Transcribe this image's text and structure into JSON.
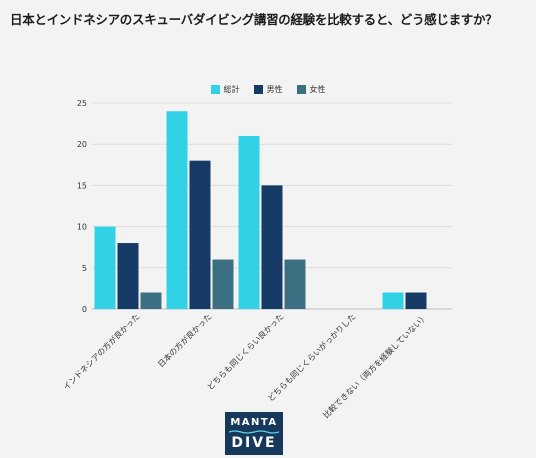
{
  "title": "日本とインドネシアのスキューバダイビング講習の経験を比較すると、どう感じますか？",
  "logo": {
    "line1": "MANTA",
    "line2": "DIVE"
  },
  "chart_data": {
    "type": "bar",
    "categories": [
      "インドネシアの方が良かった",
      "日本の方が良かった",
      "どちらも同じくらい良かった",
      "どちらも同じくらいがっかりした",
      "比較できない（両方を経験していない）"
    ],
    "series": [
      {
        "name": "総計",
        "color": "#31d1e6",
        "values": [
          10,
          24,
          21,
          0,
          2
        ]
      },
      {
        "name": "男性",
        "color": "#153a66",
        "values": [
          8,
          18,
          15,
          0,
          2
        ]
      },
      {
        "name": "女性",
        "color": "#3d6f82",
        "values": [
          2,
          6,
          6,
          0,
          0
        ]
      }
    ],
    "yticks": [
      0,
      5,
      10,
      15,
      20,
      25
    ],
    "ylim": [
      0,
      25
    ],
    "grid": true,
    "legend_position": "top-center"
  }
}
